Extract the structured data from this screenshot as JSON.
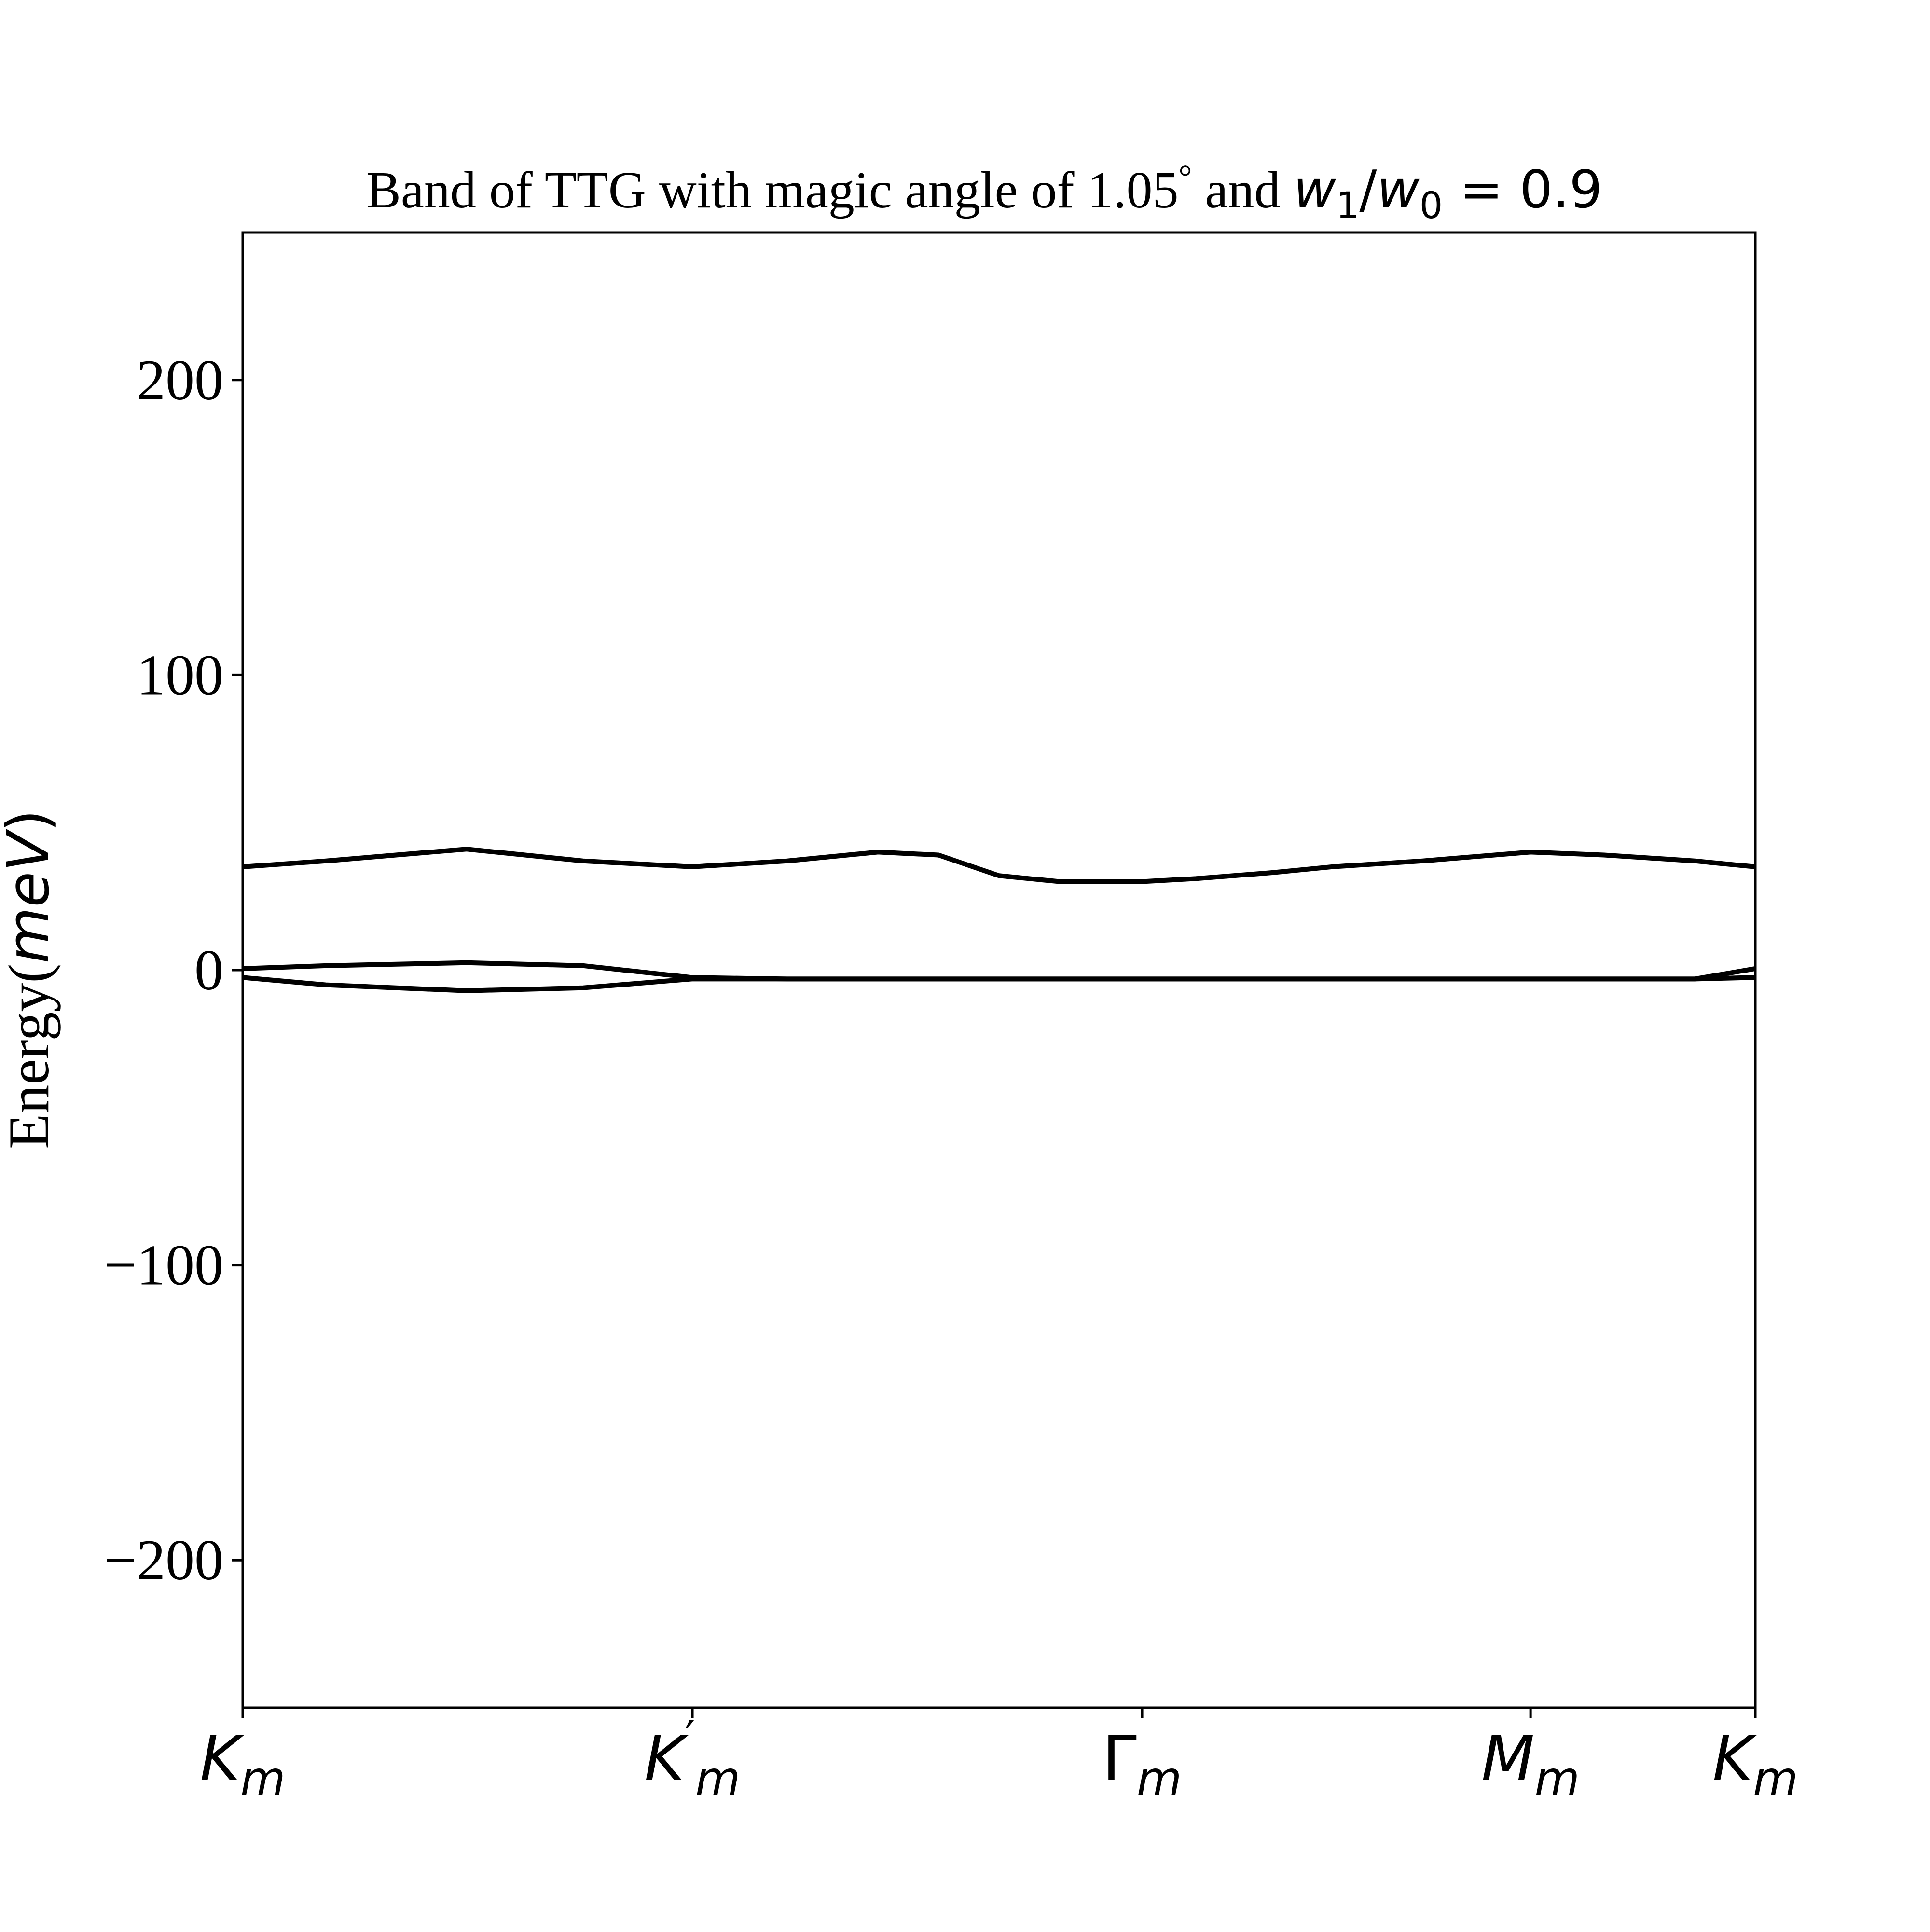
{
  "chart_data": {
    "type": "line",
    "title_text": "Band of TTG with magic angle of 1.05",
    "title_degree": "°",
    "title_and": " and ",
    "title_formula": {
      "w": "w",
      "sub1": "1",
      "slash": "/",
      "sub0": "0",
      "rhs": " = 0.9"
    },
    "ylabel": {
      "text": "Energy(",
      "italic": "meV",
      "close": ")"
    },
    "ylim": [
      -250,
      250
    ],
    "yticks": [
      {
        "value": 200,
        "label": "200"
      },
      {
        "value": 100,
        "label": "100"
      },
      {
        "value": 0,
        "label": "0"
      },
      {
        "value": -100,
        "label": "−100"
      },
      {
        "value": -200,
        "label": "−200"
      }
    ],
    "xticks": [
      {
        "value": 0,
        "label": "K",
        "sub": "m",
        "prime": ""
      },
      {
        "value": 0.2973,
        "label": "K",
        "sub": "m",
        "prime": "′"
      },
      {
        "value": 0.5946,
        "label": "Γ",
        "sub": "m",
        "prime": ""
      },
      {
        "value": 0.8514,
        "label": "M",
        "sub": "m",
        "prime": ""
      },
      {
        "value": 1.0,
        "label": "K",
        "sub": "m",
        "prime": ""
      }
    ],
    "grid": false,
    "line_color": "#000000",
    "series": [
      {
        "x": [
          0,
          0.055,
          0.148,
          0.225,
          0.297,
          0.36,
          0.42,
          0.46,
          0.52,
          0.5946,
          0.66,
          0.72,
          0.78,
          0.82,
          0.8514,
          0.9,
          0.96,
          1.0
        ],
        "y": [
          0.5,
          1.5,
          2.5,
          1.5,
          -2.5,
          -3,
          -3,
          -3,
          -3,
          -3,
          -3,
          -3,
          -3,
          -3,
          -3,
          -3,
          -3,
          -2.5
        ]
      },
      {
        "x": [
          0,
          0.055,
          0.148,
          0.225,
          0.297,
          0.36,
          0.42,
          0.46,
          0.52,
          0.5946,
          0.66,
          0.72,
          0.78,
          0.82,
          0.8514,
          0.9,
          0.96,
          1.0
        ],
        "y": [
          -2.5,
          -5,
          -7,
          -6,
          -3,
          -3,
          -3,
          -3,
          -3,
          -3,
          -3,
          -3,
          -3,
          -3,
          -3,
          -3,
          -3,
          0.5
        ]
      },
      {
        "x": [
          0,
          0.055,
          0.148,
          0.225,
          0.297,
          0.36,
          0.42,
          0.46,
          0.5,
          0.54,
          0.5946,
          0.63,
          0.68,
          0.72,
          0.78,
          0.8514,
          0.9,
          0.96,
          1.0
        ],
        "y": [
          35,
          37,
          41,
          37,
          35,
          37,
          40,
          39,
          32,
          30,
          30,
          31,
          33,
          35,
          37,
          40,
          39,
          37,
          35
        ]
      }
    ]
  }
}
